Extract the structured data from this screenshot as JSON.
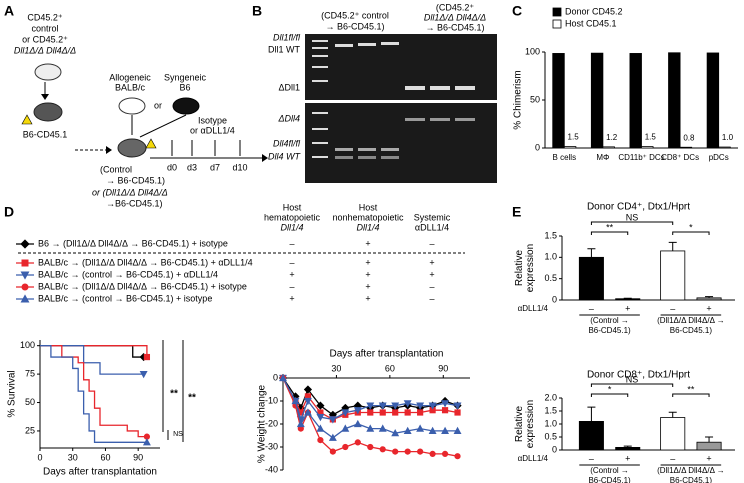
{
  "panel_labels": [
    "A",
    "B",
    "C",
    "D",
    "E"
  ],
  "diagram_A": {
    "donor": [
      "CD45.2⁺",
      "control",
      "or CD45.2⁺",
      "Dll1Δ/Δ Dll4Δ/Δ"
    ],
    "recipient": "B6-CD45.1",
    "allogeneic": [
      "Allogeneic",
      "BALB/c"
    ],
    "or": "or",
    "syngeneic": [
      "Syngeneic",
      "B6"
    ],
    "treatment": [
      "Isotype",
      "or αDLL1/4"
    ],
    "chimeras": [
      "(Control",
      "→ B6-CD45.1)",
      "or (Dll1Δ/Δ Dll4Δ/Δ",
      "→B6-CD45.1)"
    ],
    "days": [
      "d0",
      "d3",
      "d7",
      "d10"
    ]
  },
  "gel_B": {
    "headers": [
      [
        "(CD45.2⁺ control",
        "→ B6-CD45.1)"
      ],
      [
        "(CD45.2⁺",
        "Dll1Δ/Δ Dll4Δ/Δ",
        "→ B6-CD45.1)"
      ]
    ],
    "bands": [
      "Dll1fl/fl",
      "Dll1 WT",
      "ΔDll1",
      "ΔDll4",
      "Dll4fl/fl",
      "Dll4 WT"
    ]
  },
  "table_D": {
    "headers": [
      [
        "Host",
        "hematopoietic",
        "Dll1/4"
      ],
      [
        "Host",
        "nonhematopoietic",
        "Dll1/4"
      ],
      [
        "Systemic",
        "αDLL1/4"
      ]
    ],
    "rows": [
      {
        "label": "B6 → (Dll1Δ/Δ Dll4Δ/Δ → B6-CD45.1) + isotype",
        "cells": [
          "–",
          "+",
          "–"
        ]
      },
      {
        "label": "BALB/c → (Dll1Δ/Δ Dll4Δ/Δ → B6-CD45.1) + αDLL1/4",
        "cells": [
          "–",
          "+",
          "+"
        ]
      },
      {
        "label": "BALB/c → (control → B6-CD45.1) + αDLL1/4",
        "cells": [
          "+",
          "+",
          "+"
        ]
      },
      {
        "label": "BALB/c → (Dll1Δ/Δ Dll4Δ/Δ → B6-CD45.1) + isotype",
        "cells": [
          "–",
          "+",
          "–"
        ]
      },
      {
        "label": "BALB/c → (control → B6-CD45.1) + isotype",
        "cells": [
          "+",
          "+",
          "–"
        ]
      }
    ]
  },
  "chart_data": [
    {
      "type": "bar",
      "ylabel": "% Chimerism",
      "legend": "upper left",
      "categories": [
        "B cells",
        "MΦ",
        "CD11b⁺ DCs",
        "CD8⁺ DCs",
        "pDCs"
      ],
      "series": [
        {
          "name": "Donor CD45.2",
          "color": "#000000",
          "values": [
            98.5,
            98.8,
            98.5,
            99.2,
            99.0
          ]
        },
        {
          "name": "Host CD45.1",
          "color": "#ffffff",
          "values": [
            1.5,
            1.2,
            1.5,
            0.8,
            1.0
          ],
          "value_labels": [
            "1.5",
            "1.2",
            "1.5",
            "0.8",
            "1.0"
          ]
        }
      ],
      "ylim": [
        0,
        100
      ],
      "yticks": [
        0,
        50,
        100
      ]
    },
    {
      "type": "line",
      "step": true,
      "xlabel": "Days after transplantation",
      "ylabel": "% Survival",
      "xlim": [
        0,
        110
      ],
      "xticks": [
        0,
        30,
        60,
        90
      ],
      "ylim": [
        10,
        105
      ],
      "yticks": [
        25,
        50,
        75,
        100
      ],
      "series": [
        {
          "color": "#000000",
          "marker": "diamond",
          "x": [
            0,
            85,
            95
          ],
          "values": [
            100,
            90,
            90
          ]
        },
        {
          "color": "#e8262c",
          "marker": "square",
          "x": [
            0,
            90,
            98
          ],
          "values": [
            100,
            100,
            90
          ]
        },
        {
          "color": "#3b5fad",
          "marker": "triangle-down",
          "x": [
            0,
            40,
            55,
            95
          ],
          "values": [
            100,
            85,
            75,
            75
          ]
        },
        {
          "color": "#e8262c",
          "marker": "circle",
          "x": [
            0,
            20,
            35,
            40,
            45,
            50,
            55,
            80,
            90,
            98
          ],
          "values": [
            100,
            90,
            85,
            70,
            60,
            45,
            30,
            25,
            20,
            20
          ]
        },
        {
          "color": "#3b5fad",
          "marker": "triangle",
          "x": [
            0,
            10,
            30,
            35,
            40,
            45,
            50,
            98
          ],
          "values": [
            100,
            90,
            80,
            60,
            40,
            25,
            15,
            15
          ]
        }
      ],
      "annotations": [
        "**",
        "**",
        "NS"
      ]
    },
    {
      "type": "line",
      "xlabel": "Days after transplantation",
      "ylabel": "% Weight change",
      "xaxis": "top",
      "xlim": [
        0,
        105
      ],
      "xticks": [
        30,
        60,
        90
      ],
      "ylim": [
        -40,
        0
      ],
      "yticks": [
        0,
        -10,
        -20,
        -30,
        -40
      ],
      "x": [
        0,
        7,
        10,
        14,
        21,
        28,
        35,
        42,
        49,
        56,
        63,
        70,
        77,
        84,
        91,
        98
      ],
      "series": [
        {
          "color": "#000000",
          "marker": "diamond",
          "values": [
            0,
            -8,
            -13,
            -5,
            -12,
            -16,
            -13,
            -12,
            -13,
            -12,
            -13,
            -12,
            -13,
            -12,
            -10,
            -12
          ]
        },
        {
          "color": "#e8262c",
          "marker": "square",
          "values": [
            0,
            -10,
            -15,
            -8,
            -15,
            -18,
            -16,
            -15,
            -15,
            -15,
            -15,
            -15,
            -15,
            -14,
            -14,
            -15
          ]
        },
        {
          "color": "#3b5fad",
          "marker": "triangle-down",
          "values": [
            0,
            -10,
            -18,
            -10,
            -17,
            -18,
            -15,
            -14,
            -12,
            -12,
            -12,
            -11,
            -12,
            -12,
            -11,
            -12
          ]
        },
        {
          "color": "#e8262c",
          "marker": "circle",
          "values": [
            0,
            -12,
            -22,
            -15,
            -27,
            -32,
            -30,
            -28,
            -30,
            -31,
            -32,
            -32,
            -32,
            -33,
            -33,
            -34
          ]
        },
        {
          "color": "#3b5fad",
          "marker": "triangle",
          "values": [
            0,
            -10,
            -20,
            -15,
            -22,
            -26,
            -22,
            -20,
            -22,
            -22,
            -24,
            -23,
            -22,
            -23,
            -23,
            -23
          ]
        }
      ]
    },
    {
      "type": "bar",
      "title": "Donor CD4⁺, Dtx1/Hprt",
      "ylabel": [
        "Relative",
        "expression"
      ],
      "categories": [
        "–",
        "+",
        "–",
        "+"
      ],
      "row_label": "αDLL1/4",
      "group_labels": [
        [
          "(Control →",
          "B6-CD45.1)"
        ],
        [
          "(Dll1Δ/Δ Dll4Δ/Δ →",
          "B6-CD45.1)"
        ]
      ],
      "values": [
        1.0,
        0.03,
        1.15,
        0.05
      ],
      "errors": [
        0.2,
        0.01,
        0.2,
        0.03
      ],
      "colors": [
        "#000000",
        "#000000",
        "#ffffff",
        "#999999"
      ],
      "ylim": [
        0,
        1.5
      ],
      "yticks": [
        0,
        0.5,
        {
          "value": 1,
          "label": "1.0"
        },
        1.5
      ],
      "annotations": [
        "**",
        "NS",
        "*"
      ]
    },
    {
      "type": "bar",
      "title": "Donor CD8⁺, Dtx1/Hprt",
      "ylabel": [
        "Relative",
        "expression"
      ],
      "categories": [
        "–",
        "+",
        "–",
        "+"
      ],
      "row_label": "αDLL1/4",
      "group_labels": [
        [
          "(Control →",
          "B6-CD45.1)"
        ],
        [
          "(Dll1Δ/Δ Dll4Δ/Δ →",
          "B6-CD45.1)"
        ]
      ],
      "values": [
        1.1,
        0.1,
        1.25,
        0.3
      ],
      "errors": [
        0.55,
        0.05,
        0.2,
        0.2
      ],
      "colors": [
        "#000000",
        "#000000",
        "#ffffff",
        "#999999"
      ],
      "ylim": [
        0,
        2
      ],
      "yticks": [
        0,
        0.5,
        {
          "value": 1,
          "label": "1.0"
        },
        1.5,
        {
          "value": 2,
          "label": "2.0"
        }
      ],
      "annotations": [
        "*",
        "NS",
        "**"
      ]
    }
  ]
}
